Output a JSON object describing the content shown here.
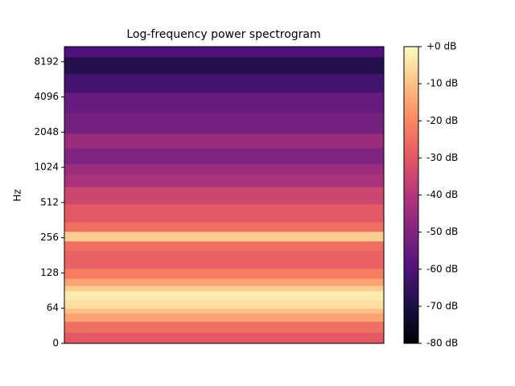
{
  "chart_data": {
    "type": "heatmap",
    "title": "Log-frequency power spectrogram",
    "y_label": "Hz",
    "yscale": "symlog",
    "linthresh": 64,
    "ylim": [
      0,
      11025
    ],
    "yticks": [
      0,
      64,
      128,
      256,
      512,
      1024,
      2048,
      4096,
      8192
    ],
    "bands": [
      0,
      20,
      40,
      55,
      64,
      75,
      90,
      100,
      115,
      140,
      200,
      240,
      290,
      350,
      500,
      700,
      900,
      1100,
      1500,
      2000,
      3000,
      4500,
      6500,
      9000,
      11025
    ],
    "values": [
      -30,
      -25,
      -15,
      -10,
      -5,
      -3,
      -8,
      -15,
      -22,
      -28,
      -25,
      -8,
      -25,
      -30,
      -35,
      -42,
      -45,
      -50,
      -45,
      -52,
      -55,
      -62,
      -68,
      -60
    ],
    "colormap": "magma",
    "clim": [
      -80,
      0
    ],
    "cticks": [
      {
        "value": 0,
        "label": "+0 dB"
      },
      {
        "value": -10,
        "label": "-10 dB"
      },
      {
        "value": -20,
        "label": "-20 dB"
      },
      {
        "value": -30,
        "label": "-30 dB"
      },
      {
        "value": -40,
        "label": "-40 dB"
      },
      {
        "value": -50,
        "label": "-50 dB"
      },
      {
        "value": -60,
        "label": "-60 dB"
      },
      {
        "value": -70,
        "label": "-70 dB"
      },
      {
        "value": -80,
        "label": "-80 dB"
      }
    ]
  }
}
